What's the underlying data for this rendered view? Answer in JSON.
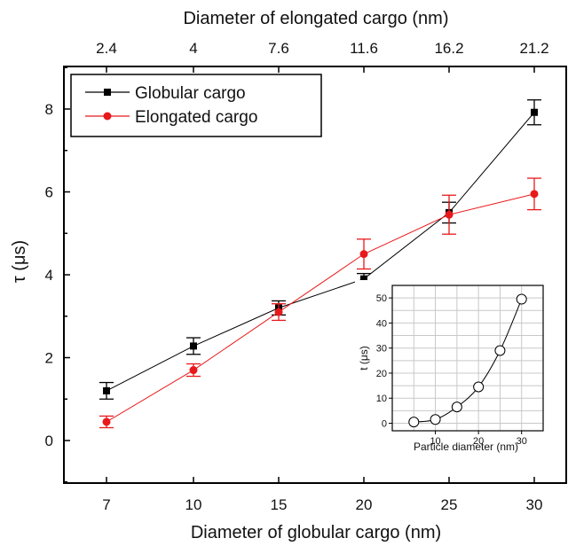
{
  "chart_data": [
    {
      "type": "line",
      "xlabel": "Diameter of globular cargo (nm)",
      "x2label": "Diameter of elongated cargo (nm)",
      "ylabel": "τ (μs)",
      "x_categories": [
        "7",
        "10",
        "15",
        "20",
        "25",
        "30"
      ],
      "x2_categories": [
        "2.4",
        "4",
        "7.6",
        "11.6",
        "16.2",
        "21.2"
      ],
      "ylim": [
        -1,
        9
      ],
      "yticks": [
        0,
        2,
        4,
        6,
        8
      ],
      "legend_position": "top-left",
      "series": [
        {
          "name": "Globular cargo",
          "marker": "square",
          "color": "#000000",
          "values": [
            1.2,
            2.28,
            3.2,
            3.9,
            5.5,
            7.92
          ],
          "errors": [
            0.2,
            0.2,
            0.17,
            0.13,
            0.25,
            0.3
          ]
        },
        {
          "name": "Elongated cargo",
          "marker": "circle",
          "color": "#e8191b",
          "values": [
            0.45,
            1.7,
            3.1,
            4.5,
            5.45,
            5.95
          ],
          "errors": [
            0.14,
            0.15,
            0.2,
            0.36,
            0.47,
            0.38
          ]
        }
      ]
    },
    {
      "type": "scatter",
      "inset": true,
      "xlabel": "Particle diameter (nm)",
      "ylabel": "t (μs)",
      "xlim": [
        0,
        35
      ],
      "ylim": [
        -3,
        55
      ],
      "xticks": [
        10,
        20,
        30
      ],
      "yticks": [
        0,
        10,
        20,
        30,
        40,
        50
      ],
      "grid": true,
      "marker": "open-circle",
      "x": [
        5,
        10,
        15,
        20,
        25,
        30
      ],
      "y": [
        0.5,
        1.5,
        6.5,
        14.5,
        29,
        49.5
      ]
    }
  ]
}
